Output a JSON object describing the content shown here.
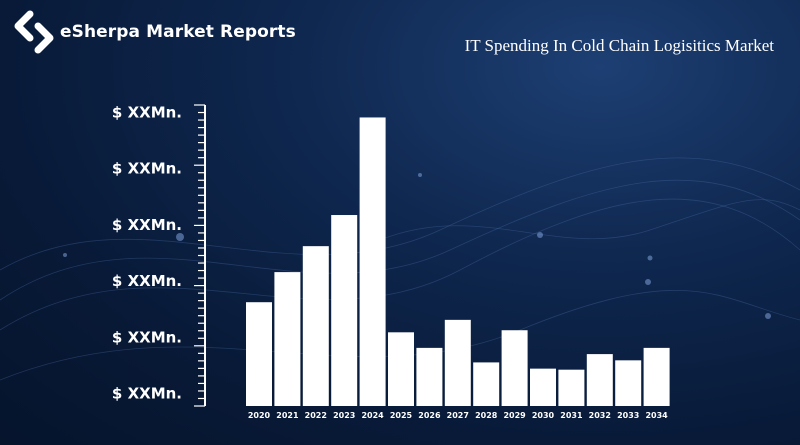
{
  "brand": {
    "name": "eSherpa Market Reports",
    "logo_icon": "esherpa-logo-icon"
  },
  "colors": {
    "background": "#0a1f42",
    "bars": "#ffffff",
    "text": "#ffffff"
  },
  "chart_data": {
    "type": "bar",
    "title": "IT Spending In Cold Chain Logisitics Market",
    "xlabel": "",
    "ylabel": "",
    "categories": [
      "2020",
      "2021",
      "2022",
      "2023",
      "2024",
      "2025",
      "2026",
      "2027",
      "2028",
      "2029",
      "2030",
      "2031",
      "2032",
      "2033",
      "2034"
    ],
    "values": [
      100,
      129,
      154,
      184,
      278,
      71,
      56,
      83,
      42,
      73,
      36,
      35,
      50,
      44,
      56
    ],
    "ylim": [
      0,
      290
    ],
    "y_tick_labels": [
      "$ XXMn.",
      "$ XXMn.",
      "$ XXMn.",
      "$ XXMn.",
      "$ XXMn.",
      "$ XXMn."
    ],
    "grid": false,
    "legend": "none"
  }
}
